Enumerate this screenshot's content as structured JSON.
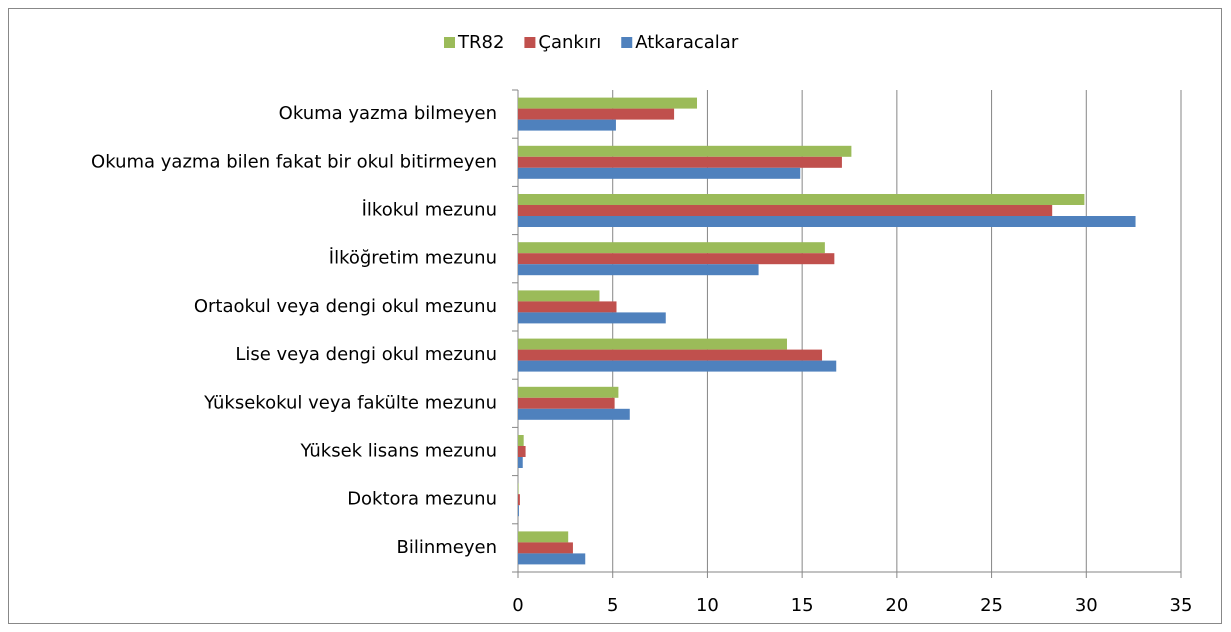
{
  "chart_data": {
    "type": "bar",
    "orientation": "horizontal",
    "categories": [
      "Okuma yazma bilmeyen",
      "Okuma yazma bilen fakat bir okul bitirmeyen",
      "İlkokul mezunu",
      "İlköğretim mezunu",
      "Ortaokul veya dengi okul mezunu",
      "Lise veya dengi okul mezunu",
      "Yüksekokul veya fakülte mezunu",
      "Yüksek lisans mezunu",
      "Doktora mezunu",
      "Bilinmeyen"
    ],
    "series": [
      {
        "name": "TR82",
        "color": "#9bbb59",
        "values": [
          9.45,
          17.6,
          29.9,
          16.2,
          4.3,
          14.2,
          5.3,
          0.3,
          0.03,
          2.65
        ]
      },
      {
        "name": "Çankırı",
        "color": "#c0504d",
        "values": [
          8.24,
          17.1,
          28.2,
          16.7,
          5.2,
          16.05,
          5.1,
          0.4,
          0.1,
          2.9
        ]
      },
      {
        "name": "Atkaracalar",
        "color": "#4f81bd",
        "values": [
          5.17,
          14.9,
          32.6,
          12.7,
          7.8,
          16.8,
          5.9,
          0.25,
          0.05,
          3.55
        ]
      }
    ],
    "xlim": [
      0,
      35
    ],
    "xticks": [
      0,
      5,
      10,
      15,
      20,
      25,
      30,
      35
    ],
    "grid": true,
    "legend": "top"
  }
}
